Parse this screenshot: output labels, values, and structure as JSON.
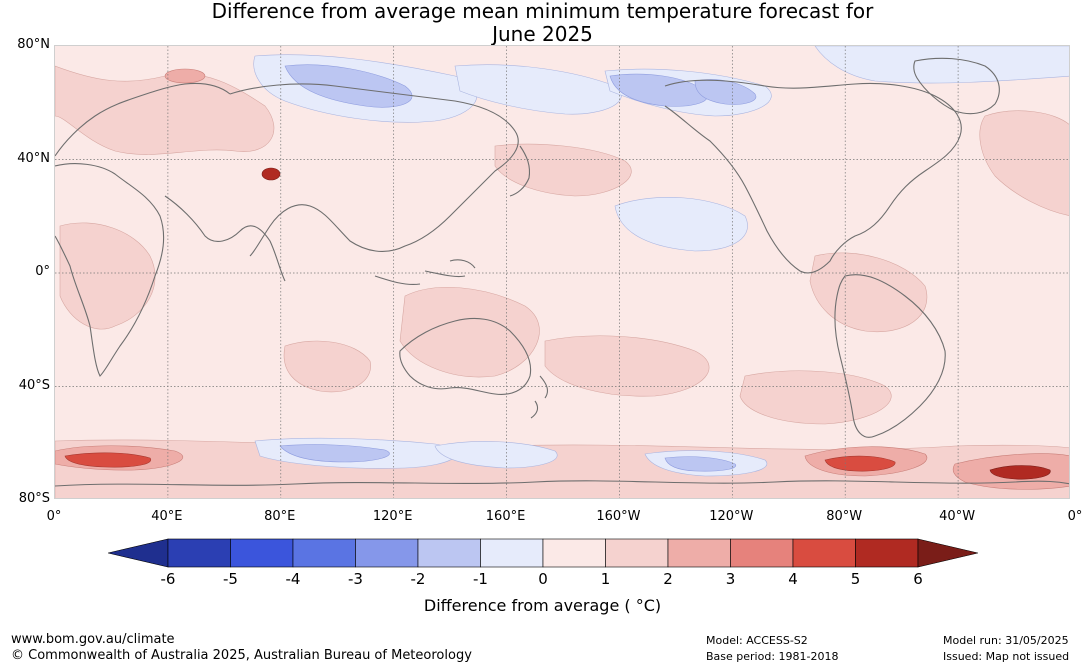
{
  "title": {
    "line1": "Difference from average mean minimum temperature forecast for",
    "line2": "June 2025"
  },
  "map": {
    "lat_labels": [
      "80°N",
      "40°N",
      "0°",
      "40°S",
      "80°S"
    ],
    "lon_labels": [
      "0°",
      "40°E",
      "80°E",
      "120°E",
      "160°E",
      "160°W",
      "120°W",
      "80°W",
      "40°W",
      "0°"
    ],
    "ocean_fill": "#fbe9e7",
    "coast_color": "#6e6e6e",
    "grid_color": "#777777"
  },
  "colorbar": {
    "ticks": [
      "-6",
      "-5",
      "-4",
      "-3",
      "-2",
      "-1",
      "0",
      "1",
      "2",
      "3",
      "4",
      "5",
      "6"
    ],
    "colors": [
      "#1f2f8f",
      "#2b3fb3",
      "#3b55dc",
      "#5a74e3",
      "#8597ea",
      "#bcc6f2",
      "#e6ebfb",
      "#fbe9e7",
      "#f5d2cf",
      "#eeada8",
      "#e6827c",
      "#d94c40",
      "#b02a22",
      "#7a1d18"
    ],
    "label": "Difference from average ( °C)"
  },
  "footer": {
    "url": "www.bom.gov.au/climate",
    "copyright": "© Commonwealth of Australia 2025, Australian Bureau of Meteorology",
    "model": "Model: ACCESS-S2",
    "base_period": "Base period: 1981-2018",
    "model_run": "Model run: 31/05/2025",
    "issued": "Issued: Map not issued"
  }
}
